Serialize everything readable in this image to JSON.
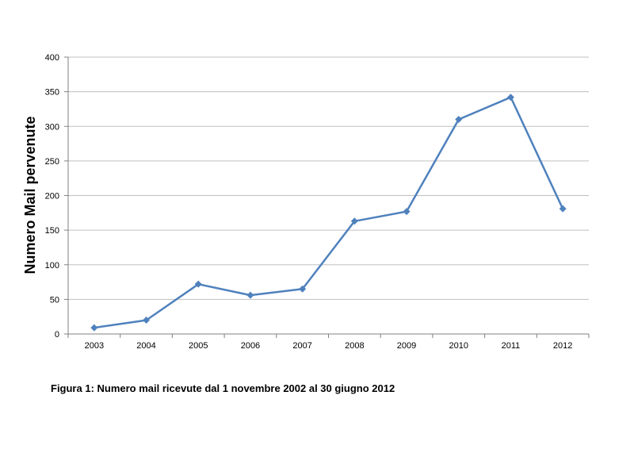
{
  "chart_data": {
    "type": "line",
    "title": "",
    "xlabel": "",
    "ylabel": "Numero Mail pervenute",
    "categories": [
      "2003",
      "2004",
      "2005",
      "2006",
      "2007",
      "2008",
      "2009",
      "2010",
      "2011",
      "2012"
    ],
    "series": [
      {
        "values": [
          9,
          20,
          72,
          56,
          65,
          163,
          177,
          310,
          342,
          181
        ]
      }
    ],
    "ylim": [
      0,
      400
    ],
    "yticks": [
      "0",
      "50",
      "100",
      "150",
      "200",
      "250",
      "300",
      "350",
      "400"
    ],
    "grid": true,
    "legend": "none",
    "colors": {
      "line": "#4f81bd",
      "grid": "#c0c0c0",
      "axis": "#808080"
    }
  },
  "caption": "Figura 1: Numero mail ricevute dal 1 novembre 2002 al 30 giugno 2012"
}
